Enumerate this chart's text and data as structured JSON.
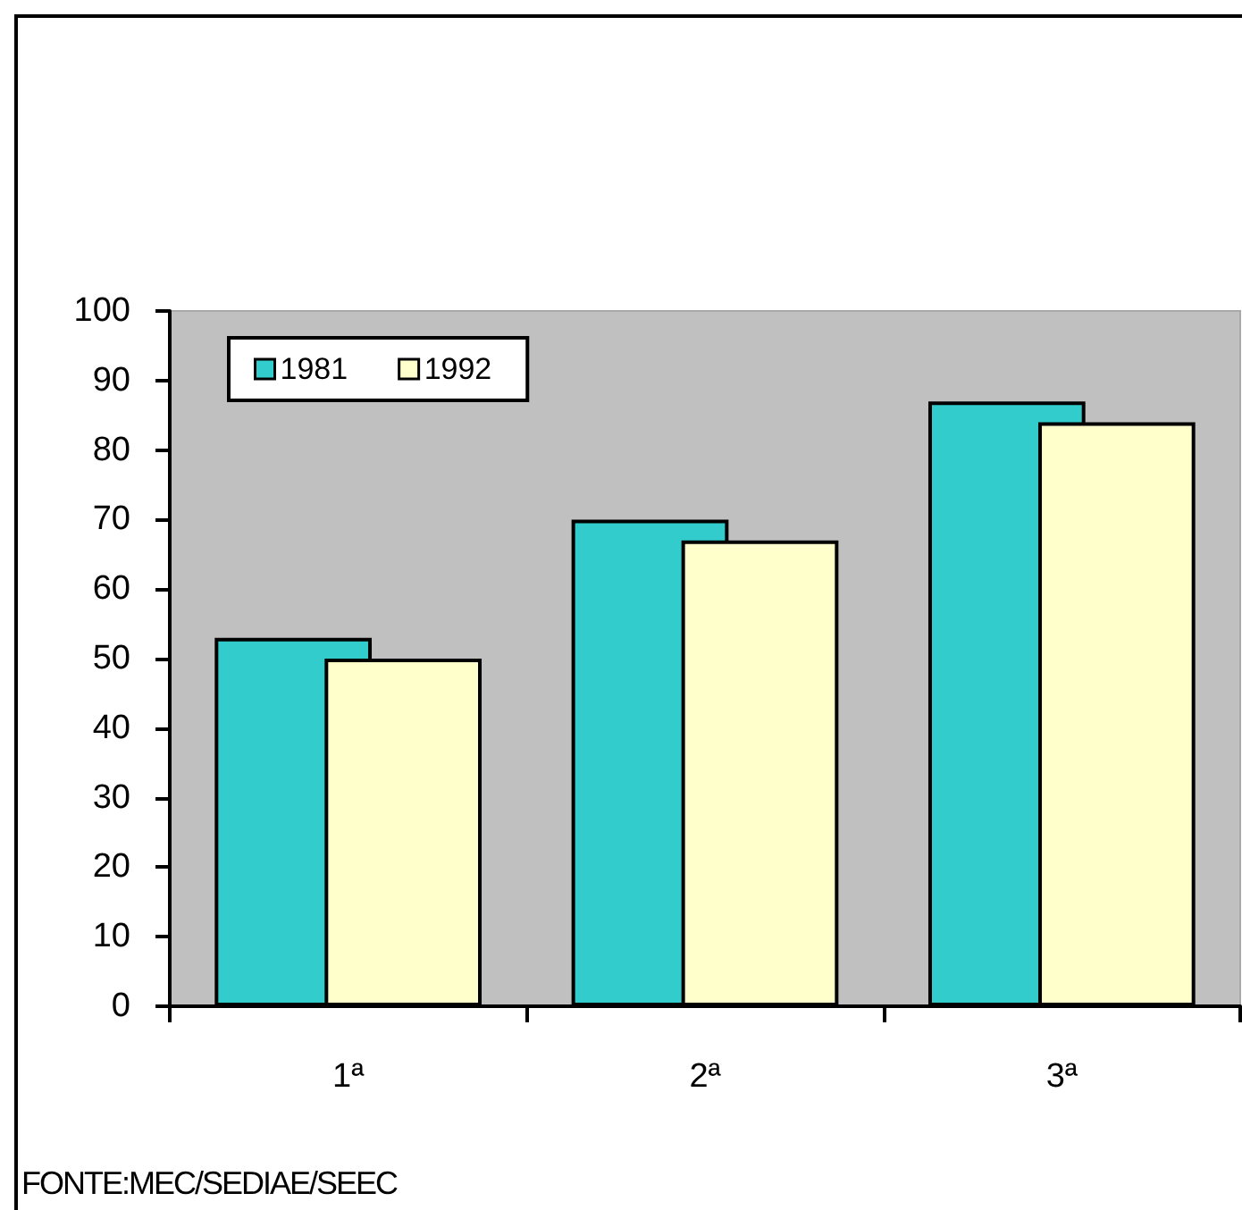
{
  "chart_data": {
    "type": "bar",
    "categories": [
      "1ª",
      "2ª",
      "3ª"
    ],
    "series": [
      {
        "name": "1981",
        "color": "#33cccc",
        "values": [
          53,
          70,
          87
        ]
      },
      {
        "name": "1992",
        "color": "#ffffcc",
        "values": [
          50,
          67,
          84
        ]
      }
    ],
    "ylim": [
      0,
      100
    ],
    "yticks": [
      0,
      10,
      20,
      30,
      40,
      50,
      60,
      70,
      80,
      90,
      100
    ],
    "grid": false,
    "legend": "top left",
    "annotations": [
      "FONTE:MEC/SEDIAE/SEEC"
    ]
  }
}
